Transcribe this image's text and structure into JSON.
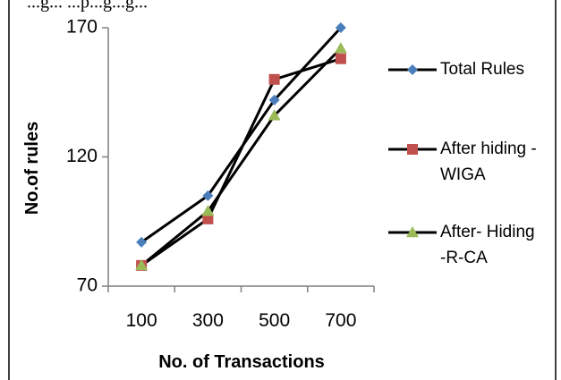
{
  "caption_fragment": "...g... ...p...g...g...",
  "chart_data": {
    "type": "line",
    "title": "",
    "xlabel": "No. of Transactions",
    "ylabel": "No.of rules",
    "categories": [
      "100",
      "300",
      "500",
      "700"
    ],
    "ylim": [
      70,
      170
    ],
    "yticks": [
      "70",
      "120",
      "170"
    ],
    "grid": false,
    "legend_position": "right",
    "series": [
      {
        "name": "Total Rules",
        "legend_lines": [
          "Total Rules"
        ],
        "values": [
          87,
          105,
          142,
          170
        ],
        "marker": "diamond",
        "marker_color": "#4a7ebb",
        "line_color": "#000000"
      },
      {
        "name": "After hiding -WIGA",
        "legend_lines": [
          "After hiding -",
          "WIGA"
        ],
        "values": [
          78,
          96,
          150,
          158
        ],
        "marker": "square",
        "marker_color": "#c0504d",
        "line_color": "#000000"
      },
      {
        "name": "After- Hiding -R-CA",
        "legend_lines": [
          "After- Hiding",
          "-R-CA"
        ],
        "values": [
          78,
          99,
          136,
          162
        ],
        "marker": "triangle",
        "marker_color": "#9bbb59",
        "line_color": "#000000"
      }
    ]
  }
}
